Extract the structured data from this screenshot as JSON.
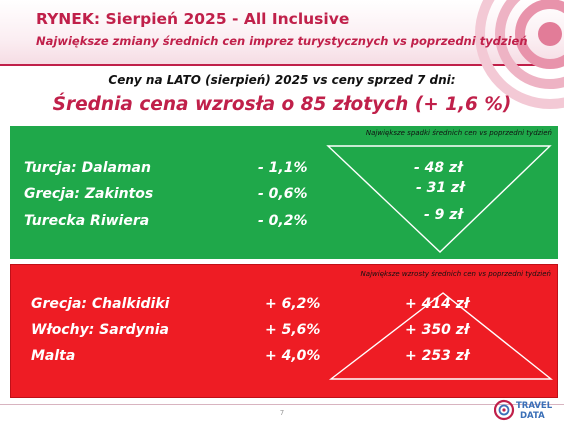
{
  "slide": {
    "title": "RYNEK: Sierpień 2025 - All Inclusive",
    "subtitle": "Największe zmiany średnich cen imprez turystycznych vs poprzedni tydzień",
    "comparison_text": "Ceny na LATO (sierpień) 2025 vs ceny sprzed 7 dni:",
    "headline": "Średnia cena wzrosła o 85 złotych (+ 1,6 %)",
    "page_number": "7"
  },
  "decreases": {
    "note": "Największe spadki średnich cen vs poprzedni tydzień",
    "rows": [
      {
        "destination": "Turcja: Dalaman",
        "percent": "-  1,1%",
        "amount": "- 48 zł"
      },
      {
        "destination": "Grecja: Zakintos",
        "percent": "-  0,6%",
        "amount": "- 31 zł"
      },
      {
        "destination": "Turecka Riwiera",
        "percent": "-  0,2%",
        "amount": "- 9 zł"
      }
    ]
  },
  "increases": {
    "note": "Największe wzrosty średnich cen vs poprzedni tydzień",
    "rows": [
      {
        "destination": "Grecja: Chalkidiki",
        "percent": "+ 6,2%",
        "amount": "+ 414 zł"
      },
      {
        "destination": "Włochy: Sardynia",
        "percent": "+ 5,6%",
        "amount": "+ 350 zł"
      },
      {
        "destination": "Malta",
        "percent": "+ 4,0%",
        "amount": "+ 253 zł"
      }
    ]
  },
  "logo": {
    "word1": "TRAVEL",
    "word2": "DATA",
    "icon": "travel-data-logo-icon"
  },
  "colors": {
    "accent": "#c0204a",
    "decrease_panel": "#1fa84a",
    "increase_panel": "#ee1c24"
  }
}
